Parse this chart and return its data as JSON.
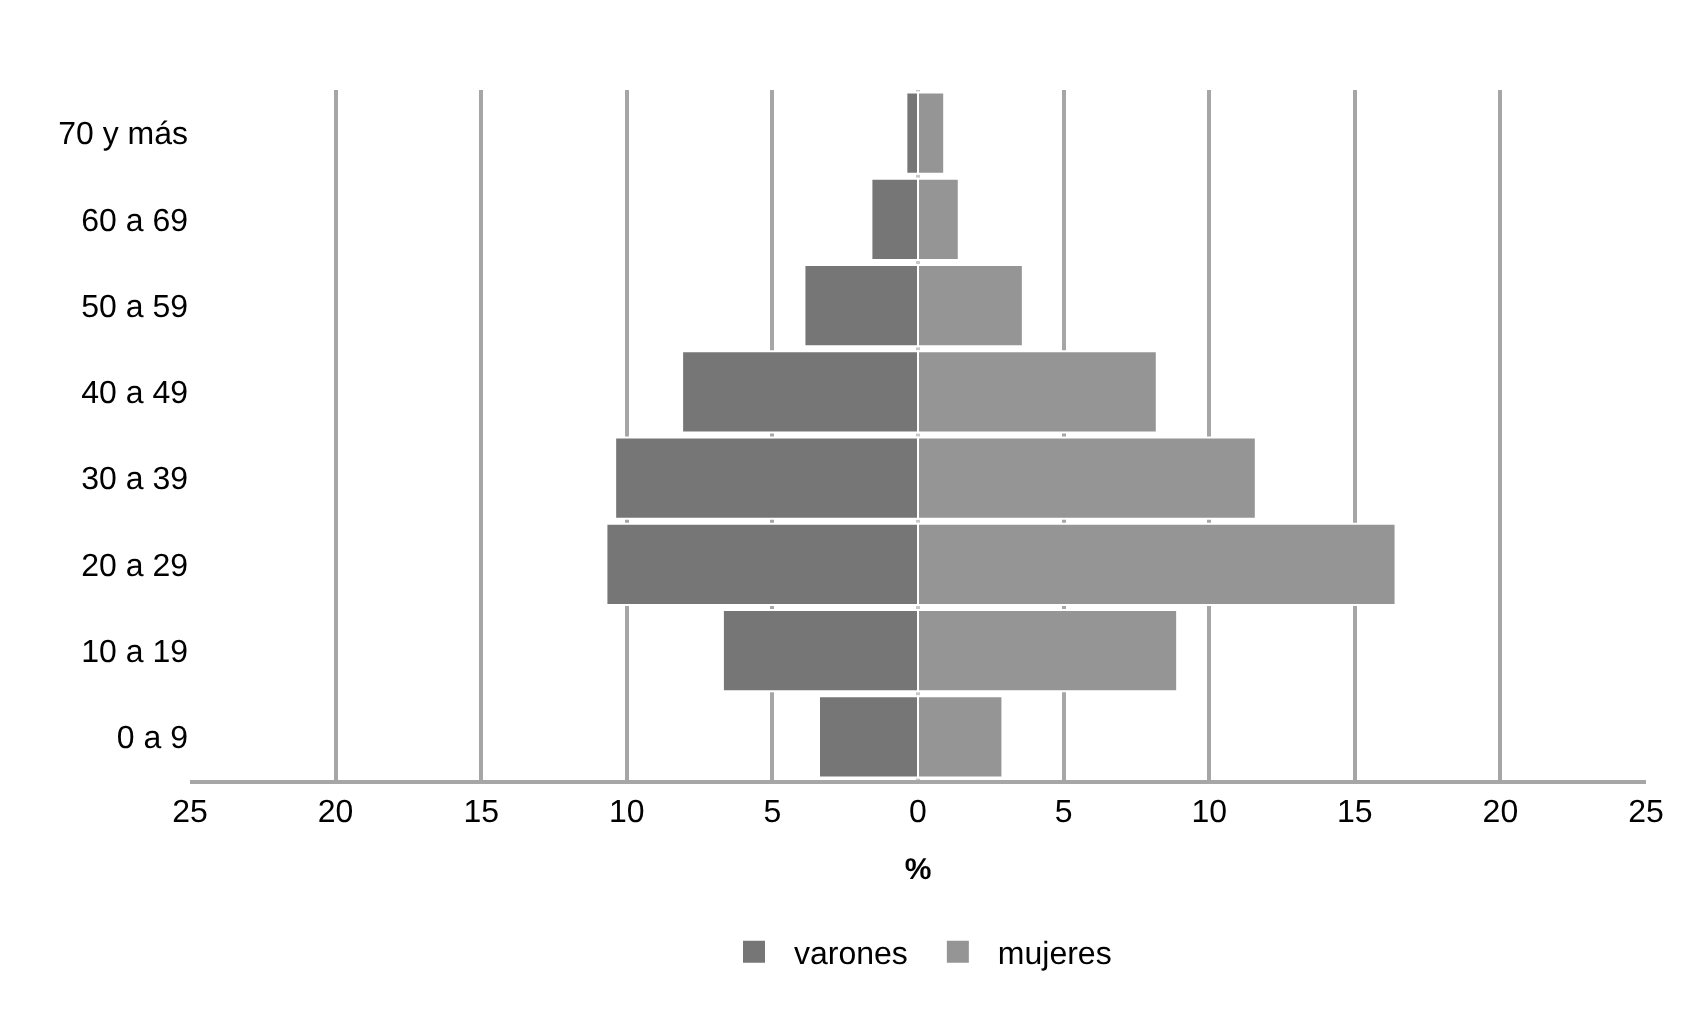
{
  "chart_data": {
    "type": "bar",
    "orientation": "horizontal",
    "stacked": true,
    "categories": [
      "70 y más",
      "60 a 69",
      "50 a 59",
      "40 a 49",
      "30 a 39",
      "20 a 29",
      "10 a 19",
      "0 a 9"
    ],
    "series": [
      {
        "name": "varones",
        "color": "#767676",
        "values": [
          -0.4,
          -1.6,
          -3.9,
          -8.1,
          -10.4,
          -10.7,
          -6.7,
          -3.4
        ]
      },
      {
        "name": "mujeres",
        "color": "#959595",
        "values": [
          0.9,
          1.4,
          3.6,
          8.2,
          11.6,
          16.4,
          8.9,
          2.9
        ]
      }
    ],
    "xlabel": "%",
    "xlim": [
      -25,
      25
    ],
    "xticks": [
      {
        "value": -25,
        "label": "25"
      },
      {
        "value": -20,
        "label": "20"
      },
      {
        "value": -15,
        "label": "15"
      },
      {
        "value": -10,
        "label": "10"
      },
      {
        "value": -5,
        "label": "5"
      },
      0,
      5,
      10,
      15,
      20,
      25
    ],
    "grid": "x",
    "legend": "bottom"
  }
}
